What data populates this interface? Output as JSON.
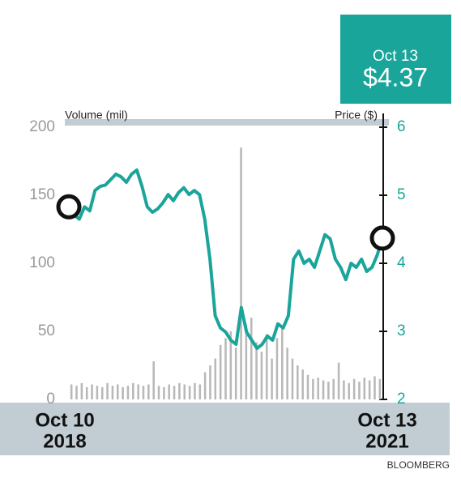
{
  "chart_data": {
    "type": "line",
    "y_label": "Volume (mil)",
    "y2_label": "Price ($)",
    "callout": {
      "date": "Oct 13",
      "value_label": "$4.37"
    },
    "date_labels": [
      [
        "Oct 10",
        "2018"
      ],
      [
        "Oct 13",
        "2021"
      ]
    ],
    "source": "BLOOMBERG",
    "ylim": [
      0,
      200
    ],
    "yticks": [
      0,
      50,
      100,
      150,
      200
    ],
    "y2lim": [
      2,
      6
    ],
    "y2ticks": [
      2,
      3,
      4,
      5,
      6
    ],
    "series": [
      {
        "name": "Volume",
        "type": "bar",
        "color": "#b8b8b8",
        "values": [
          11,
          10,
          12,
          9,
          11,
          10,
          9,
          12,
          10,
          11,
          9,
          10,
          12,
          11,
          10,
          11,
          28,
          10,
          9,
          11,
          10,
          12,
          11,
          10,
          12,
          11,
          20,
          25,
          30,
          40,
          45,
          50,
          38,
          185,
          55,
          60,
          42,
          35,
          48,
          30,
          45,
          52,
          38,
          30,
          25,
          22,
          18,
          15,
          16,
          14,
          13,
          15,
          27,
          14,
          12,
          15,
          13,
          16,
          14,
          17,
          15
        ]
      },
      {
        "name": "Price",
        "axis": "y2",
        "color": "#1aa59a",
        "values": [
          4.83,
          4.71,
          4.65,
          4.83,
          4.77,
          5.07,
          5.13,
          5.15,
          5.23,
          5.31,
          5.27,
          5.19,
          5.31,
          5.37,
          5.13,
          4.83,
          4.75,
          4.8,
          4.89,
          5.01,
          4.92,
          5.04,
          5.11,
          5.01,
          5.07,
          5.01,
          4.65,
          4.06,
          3.23,
          3.05,
          2.99,
          2.87,
          2.81,
          3.35,
          2.99,
          2.87,
          2.75,
          2.81,
          2.93,
          2.87,
          3.11,
          3.05,
          3.23,
          4.06,
          4.18,
          4.0,
          4.06,
          3.94,
          4.18,
          4.42,
          4.36,
          4.06,
          3.94,
          3.76,
          4.0,
          3.94,
          4.06,
          3.88,
          3.94,
          4.12,
          4.37
        ]
      }
    ]
  }
}
